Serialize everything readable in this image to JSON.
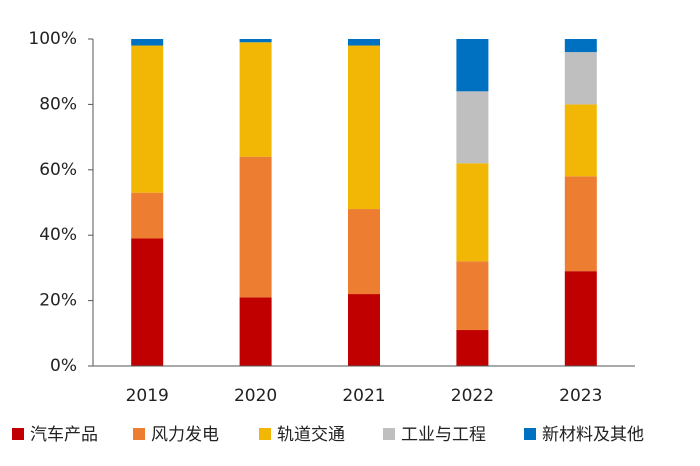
{
  "chart_data": {
    "type": "stacked_bar",
    "categories": [
      "2019",
      "2020",
      "2021",
      "2022",
      "2023"
    ],
    "series": [
      {
        "name": "汽车产品",
        "color": "#c00000",
        "values": [
          39,
          21,
          22,
          11,
          29
        ]
      },
      {
        "name": "风力发电",
        "color": "#ed7d31",
        "values": [
          14,
          43,
          26,
          21,
          29
        ]
      },
      {
        "name": "轨道交通",
        "color": "#f2b705",
        "values": [
          45,
          35,
          50,
          30,
          22
        ]
      },
      {
        "name": "工业与工程",
        "color": "#bfbfbf",
        "values": [
          0,
          0,
          0,
          22,
          16
        ]
      },
      {
        "name": "新材料及其他",
        "color": "#0070c0",
        "values": [
          2,
          1,
          2,
          16,
          4
        ]
      }
    ],
    "ylim": [
      0,
      100
    ],
    "yticks": [
      {
        "value": 0,
        "label": "0%"
      },
      {
        "value": 20,
        "label": "20%"
      },
      {
        "value": 40,
        "label": "40%"
      },
      {
        "value": 60,
        "label": "60%"
      },
      {
        "value": 80,
        "label": "80%"
      },
      {
        "value": 100,
        "label": "100%"
      }
    ],
    "grid": false,
    "legend": "bottom"
  }
}
